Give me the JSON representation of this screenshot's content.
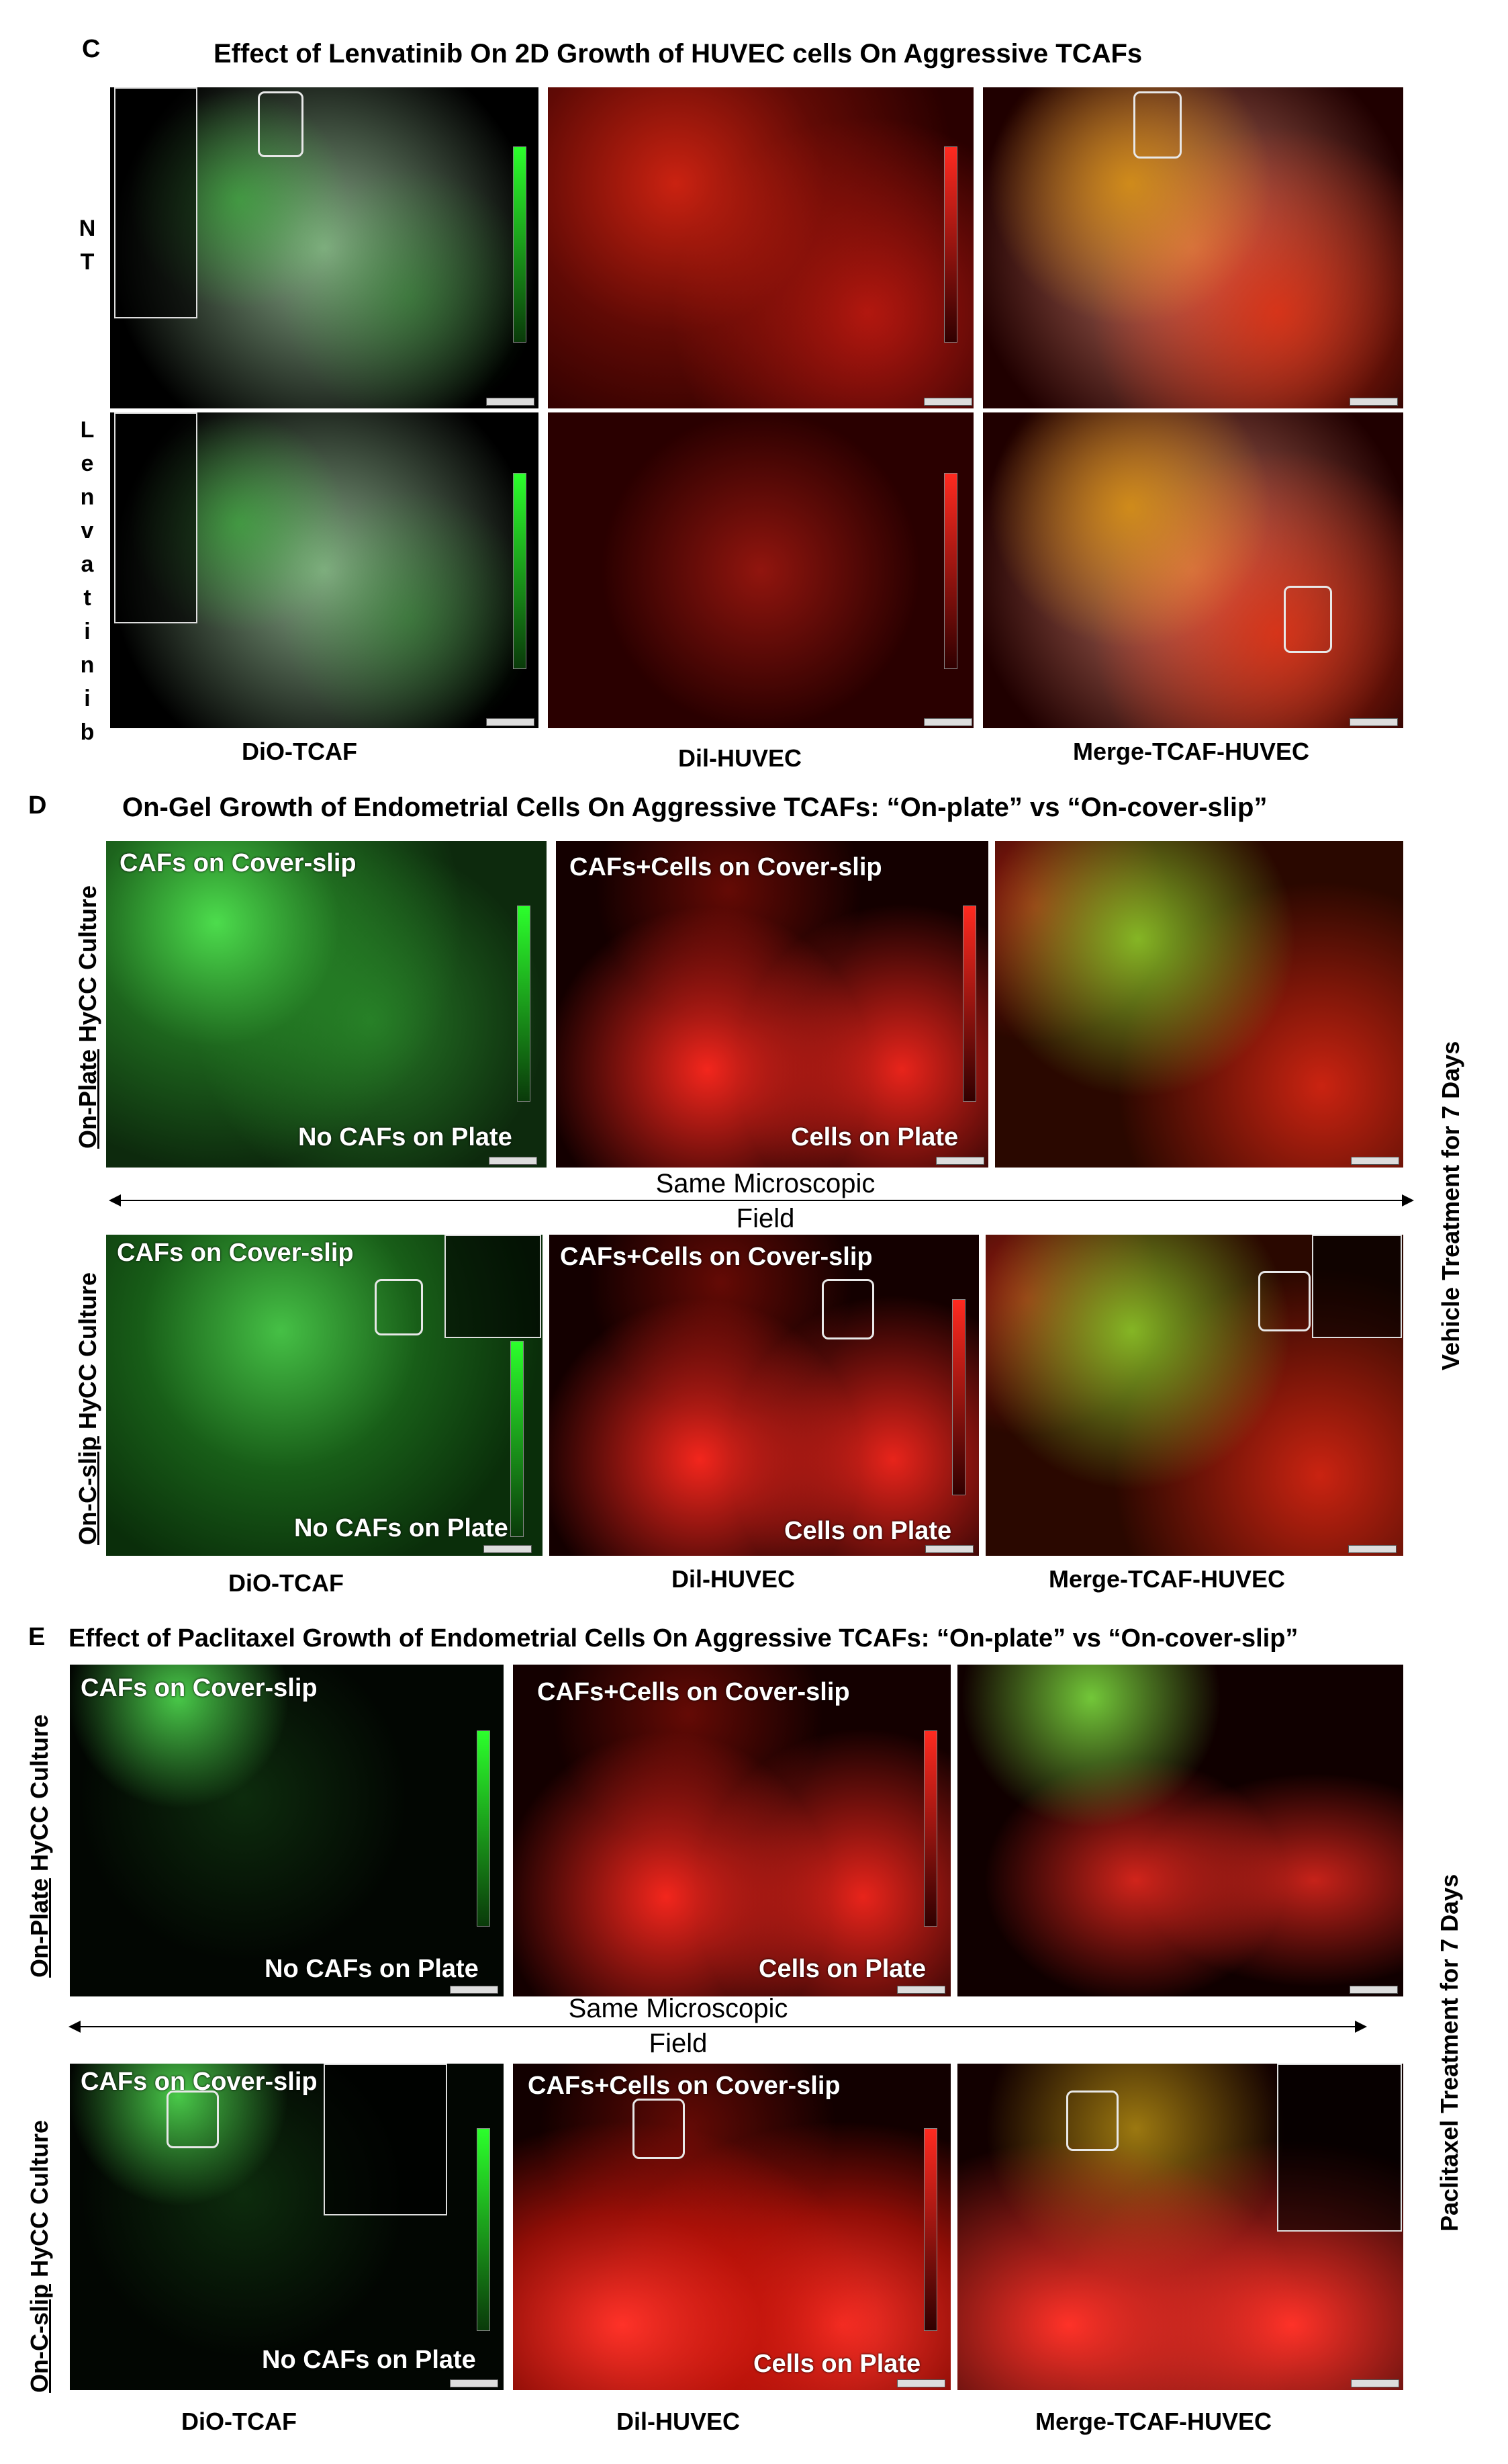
{
  "panel_c": {
    "letter": "C",
    "title": "Effect of Lenvatinib On 2D Growth of HUVEC cells On Aggressive TCAFs",
    "row_labels": [
      "NT",
      "Lenvatinib"
    ],
    "col_labels": [
      "DiO-TCAF",
      "Dil-HUVEC",
      "Merge-TCAF-HUVEC"
    ]
  },
  "panel_d": {
    "letter": "D",
    "title": "On-Gel Growth of Endometrial Cells On Aggressive TCAFs: “On-plate” vs  “On-cover-slip”",
    "row1_label_u": "On-Plate",
    "row1_label_rest": " HyCC Culture",
    "row2_label_u": "On-C-slip",
    "row2_label_rest": " HyCC Culture",
    "overlay_cafs": "CAFs on Cover-slip",
    "overlay_cafs_cells": "CAFs+Cells on Cover-slip",
    "overlay_no_cafs": "No CAFs on Plate",
    "overlay_cells_plate": "Cells on Plate",
    "same_field_line1": "Same Microscopic",
    "same_field_line2": "Field",
    "side_label": "Vehicle Treatment for 7 Days",
    "col_labels": [
      "DiO-TCAF",
      "Dil-HUVEC",
      "Merge-TCAF-HUVEC"
    ]
  },
  "panel_e": {
    "letter": "E",
    "title": "Effect of Paclitaxel Growth of Endometrial Cells On Aggressive TCAFs: “On-plate” vs “On-cover-slip”",
    "row1_label_u": "On-Plate",
    "row1_label_rest": " HyCC Culture",
    "row2_label_u": "On-C-slip",
    "row2_label_rest": " HyCC Culture",
    "overlay_cafs": "CAFs on Cover-slip",
    "overlay_cafs_cells": "CAFs+Cells on Cover-slip",
    "overlay_no_cafs": "No CAFs on Plate",
    "overlay_cells_plate": "Cells on Plate",
    "same_field_line1": "Same Microscopic",
    "same_field_line2": "Field",
    "side_label": "Paclitaxel Treatment for 7 Days",
    "col_labels": [
      "DiO-TCAF",
      "Dil-HUVEC",
      "Merge-TCAF-HUVEC"
    ]
  }
}
